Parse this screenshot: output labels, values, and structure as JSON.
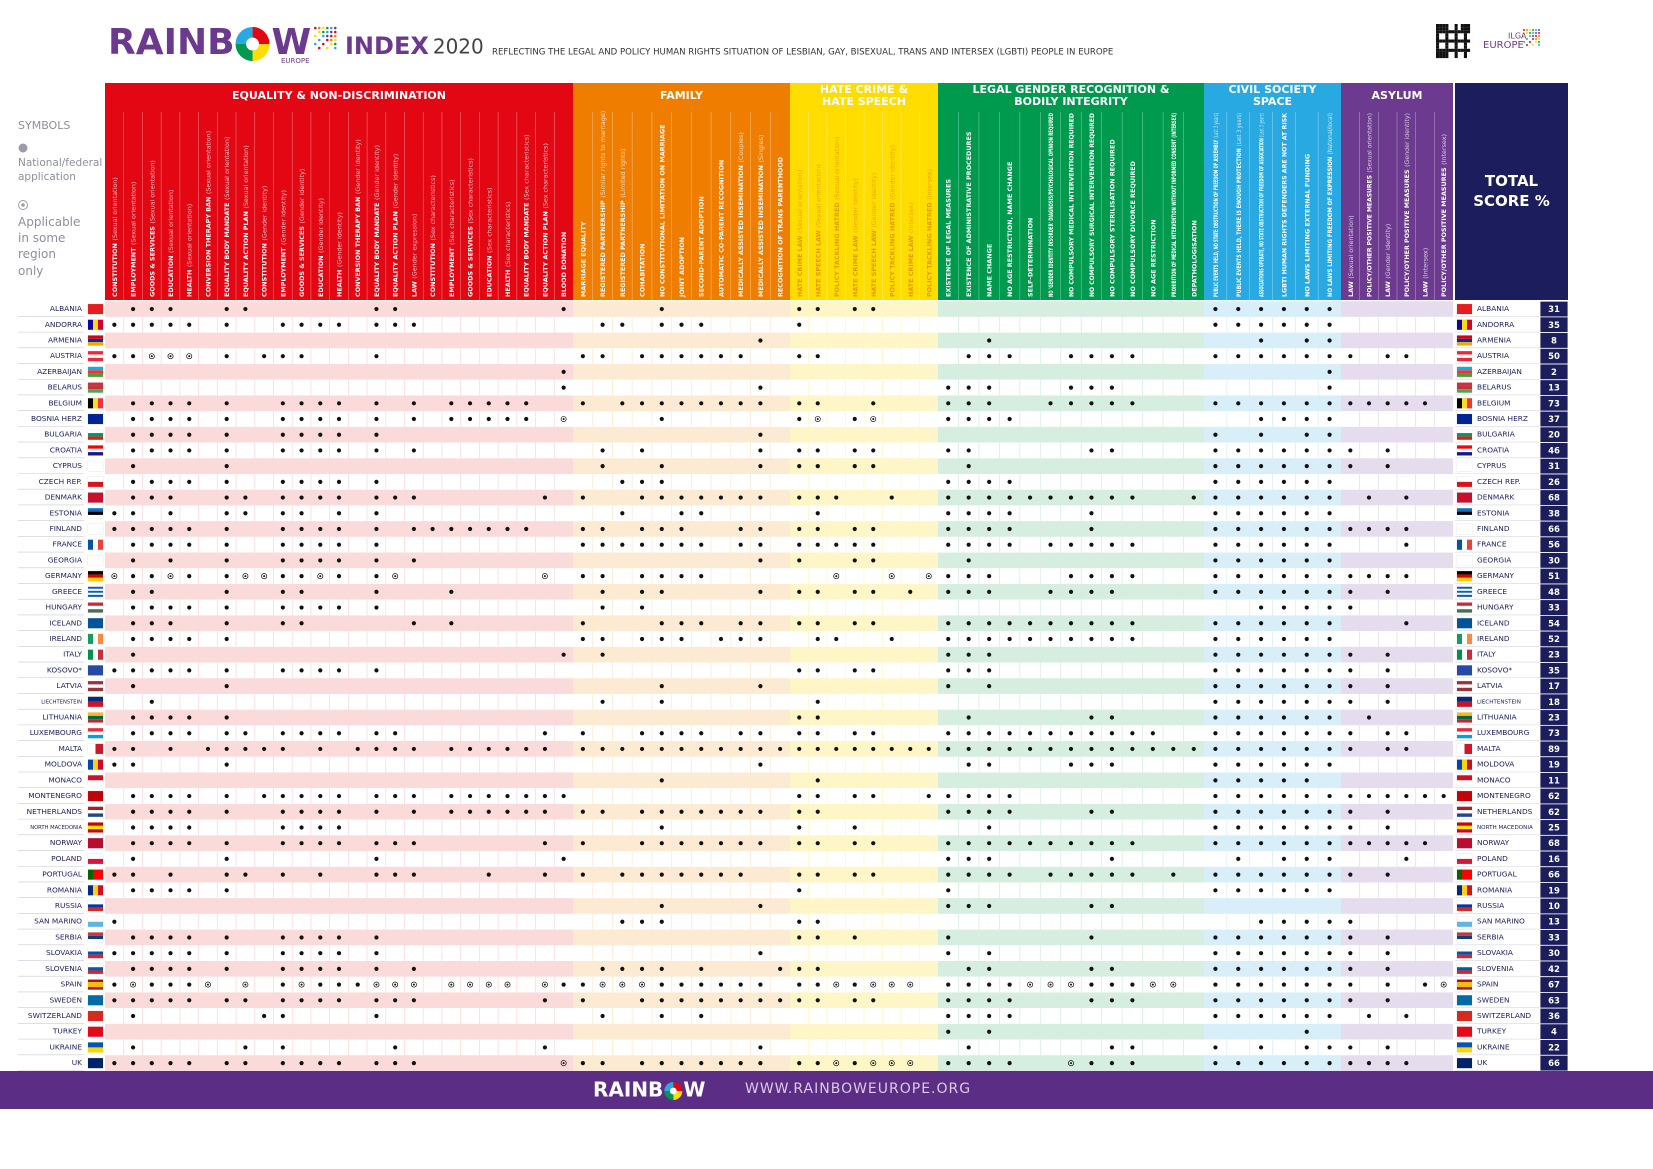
{
  "header": {
    "brand_left": "RAINB",
    "brand_right": "W",
    "brand_sub": "EUROPE",
    "index": "INDEX",
    "year": "2020",
    "subtitle": "REFLECTING THE LEGAL AND POLICY HUMAN RIGHTS SITUATION OF LESBIAN, GAY, BISEXUAL, TRANS AND INTERSEX (LGBTI) PEOPLE IN EUROPE",
    "org": "ILGA",
    "org_sub": "EUROPE"
  },
  "symbols": {
    "title": "SYMBOLS",
    "full": "National/federal application",
    "partial": "Applicable in some region only"
  },
  "total_header": "TOTAL SCORE %",
  "sections": [
    {
      "title": "EQUALITY & NON-DISCRIMINATION",
      "color": "#e30613",
      "tint": "#fbdada",
      "label_color": "#ffffff",
      "columns": [
        {
          "label": "CONSTITUTION",
          "note": "(Sexual orientation)"
        },
        {
          "label": "EMPLOYMENT",
          "note": "(Sexual orientation)"
        },
        {
          "label": "GOODS & SERVICES",
          "note": "(Sexual orientation)"
        },
        {
          "label": "EDUCATION",
          "note": "(Sexual orientation)"
        },
        {
          "label": "HEALTH",
          "note": "(Sexual orientation)"
        },
        {
          "label": "CONVERSION THERAPY BAN",
          "note": "(Sexual orientation)"
        },
        {
          "label": "EQUALITY BODY MANDATE",
          "note": "(Sexual orientation)"
        },
        {
          "label": "EQUALITY ACTION PLAN",
          "note": "(Sexual orientation)"
        },
        {
          "label": "CONSTITUTION",
          "note": "(Gender identity)"
        },
        {
          "label": "EMPLOYMENT",
          "note": "(Gender identity)"
        },
        {
          "label": "GOODS & SERVICES",
          "note": "(Gender identity)"
        },
        {
          "label": "EDUCATION",
          "note": "(Gender identity)"
        },
        {
          "label": "HEALTH",
          "note": "(Gender identity)"
        },
        {
          "label": "CONVERSION THERAPY BAN",
          "note": "(Gender identity)"
        },
        {
          "label": "EQUALITY BODY MANDATE",
          "note": "(Gender identity)"
        },
        {
          "label": "EQUALITY ACTION PLAN",
          "note": "(Gender identity)"
        },
        {
          "label": "LAW",
          "note": "(Gender expression)"
        },
        {
          "label": "CONSTITUTION",
          "note": "(Sex characteristics)"
        },
        {
          "label": "EMPLOYMENT",
          "note": "(Sex characteristics)"
        },
        {
          "label": "GOODS & SERVICES",
          "note": "(Sex characteristics)"
        },
        {
          "label": "EDUCATION",
          "note": "(Sex characteristics)"
        },
        {
          "label": "HEALTH",
          "note": "(Sex characteristics)"
        },
        {
          "label": "EQUALITY BODY MANDATE",
          "note": "(Sex characteristics)"
        },
        {
          "label": "EQUALITY ACTION PLAN",
          "note": "(Sex characteristics)"
        },
        {
          "label": "BLOOD DONATION"
        }
      ]
    },
    {
      "title": "FAMILY",
      "color": "#ef7d00",
      "tint": "#fdead2",
      "label_color": "#ffffff",
      "columns": [
        {
          "label": "MARRIAGE EQUALITY"
        },
        {
          "label": "REGISTERED PARTNERSHIP",
          "note": "(Similar rights to marriage)"
        },
        {
          "label": "REGISTERED PARTNERSHIP",
          "note": "(Limited rights)"
        },
        {
          "label": "COHABITATION"
        },
        {
          "label": "NO CONSTITUTIONAL LIMITATION ON MARRIAGE"
        },
        {
          "label": "JOINT ADOPTION"
        },
        {
          "label": "SECOND-PARENT ADOPTION"
        },
        {
          "label": "AUTOMATIC CO-PARENT RECOGNITION"
        },
        {
          "label": "MEDICALLY ASSISTED INSEMINATION",
          "note": "(Couples)"
        },
        {
          "label": "MEDICALLY ASSISTED INSEMINATION",
          "note": "(Singles)"
        },
        {
          "label": "RECOGNITION OF TRANS PARENTHOOD"
        }
      ]
    },
    {
      "title": "HATE CRIME & HATE SPEECH",
      "color": "#ffdd00",
      "tint": "#fff6c8",
      "label_color": "#e39a00",
      "columns": [
        {
          "label": "HATE CRIME LAW",
          "note": "(Sexual orientation)"
        },
        {
          "label": "HATE SPEECH LAW",
          "note": "(Sexual orientation)"
        },
        {
          "label": "POLICY TACKLING HATRED",
          "note": "(Sexual orientation)"
        },
        {
          "label": "HATE CRIME LAW",
          "note": "(Gender identity)"
        },
        {
          "label": "HATE SPEECH LAW",
          "note": "(Gender identity)"
        },
        {
          "label": "POLICY TACKLING HATRED",
          "note": "(Gender identity)"
        },
        {
          "label": "HATE CRIME LAW",
          "note": "(Intersex)"
        },
        {
          "label": "POLICY TACKLING HATRED",
          "note": "(Intersex)"
        }
      ]
    },
    {
      "title": "LEGAL GENDER RECOGNITION & BODILY INTEGRITY",
      "color": "#009a4e",
      "tint": "#d5eee0",
      "label_color": "#ffffff",
      "columns": [
        {
          "label": "EXISTENCE OF LEGAL MEASURES"
        },
        {
          "label": "EXISTENCE OF ADMINISTRATIVE PROCEDURES"
        },
        {
          "label": "NAME CHANGE"
        },
        {
          "label": "NO AGE RESTRICTION, NAME CHANGE"
        },
        {
          "label": "SELF-DETERMINATION"
        },
        {
          "label": "NO 'GENDER IDENTITY DISORDER' DIAGNOSIS/PSYCHOLOGICAL OPINION REQUIRED"
        },
        {
          "label": "NO COMPULSORY MEDICAL INTERVENTION REQUIRED"
        },
        {
          "label": "NO COMPULSORY SURGICAL INTERVENTION REQUIRED"
        },
        {
          "label": "NO COMPULSORY STERILISATION REQUIRED"
        },
        {
          "label": "NO COMPULSORY DIVORCE REQUIRED"
        },
        {
          "label": "NO AGE RESTRICTION"
        },
        {
          "label": "PROHIBITION OF MEDICAL INTERVENTION WITHOUT INFORMED CONSENT (INTERSEX)"
        },
        {
          "label": "DEPATHOLOGISATION"
        }
      ]
    },
    {
      "title": "CIVIL SOCIETY SPACE",
      "color": "#29a9e1",
      "tint": "#d8eef9",
      "label_color": "#ffffff",
      "columns": [
        {
          "label": "PUBLIC EVENTS HELD, NO STATE OBSTRUCTION OF FREEDOM OF ASSEMBLY",
          "note": "(Last 3 years)"
        },
        {
          "label": "PUBLIC EVENTS HELD, THERE IS ENOUGH PROTECTION",
          "note": "(Last 3 years)"
        },
        {
          "label": "ASSOCIATIONS OPERATE, NO STATE OBSTRUCTION OF FREEDOM OF ASSOCIATION",
          "note": "(Last 3 years)"
        },
        {
          "label": "LGBTI HUMAN RIGHTS DEFENDERS ARE NOT AT RISK"
        },
        {
          "label": "NO LAWS LIMITING EXTERNAL FUNDING"
        },
        {
          "label": "NO LAWS LIMITING FREEDOM OF EXPRESSION",
          "note": "(National/local)"
        }
      ]
    },
    {
      "title": "ASYLUM",
      "color": "#6c3a8e",
      "tint": "#e5dcee",
      "label_color": "#ffffff",
      "columns": [
        {
          "label": "LAW",
          "note": "(Sexual orientation)"
        },
        {
          "label": "POLICY/OTHER POSITIVE MEASURES",
          "note": "(Sexual orientation)"
        },
        {
          "label": "LAW",
          "note": "(Gender identity)"
        },
        {
          "label": "POLICY/OTHER POSITIVE MEASURES",
          "note": "(Gender identity)"
        },
        {
          "label": "LAW",
          "note": "(Intersex)"
        },
        {
          "label": "POLICY/OTHER POSITIVE MEASURES",
          "note": "(Intersex)"
        }
      ]
    }
  ],
  "countries": [
    {
      "name": "ALBANIA",
      "score": 31,
      "cells": [
        ".xxx..xx......xx........x",
        "....x......",
        "xx.xx...",
        ".............",
        "xxxxxx",
        "......"
      ]
    },
    {
      "name": "ANDORRA",
      "score": 35,
      "cells": [
        "xxxxx.x..xxxx.xxx........",
        ".xx.xxx....",
        "x.......",
        ".............",
        "xxxxxx",
        "......"
      ]
    },
    {
      "name": "ARMENIA",
      "score": 8,
      "cells": [
        ".........................",
        ".........x.",
        "........",
        "..x..........",
        "..x.xx",
        "......"
      ]
    },
    {
      "name": "AUSTRIA",
      "score": 50,
      "cells": [
        "xxooo.x.xxx...x..........",
        "xx.xxxxxx..",
        "xx......",
        ".xxx..xxxx...",
        "xxxxxx",
        "x.xx.."
      ]
    },
    {
      "name": "AZERBAIJAN",
      "score": 2,
      "cells": [
        "........................x",
        "...........",
        "........",
        ".............",
        ".....x",
        "......"
      ]
    },
    {
      "name": "BELARUS",
      "score": 13,
      "cells": [
        "........................x",
        ".........x.",
        "........",
        "xxx...xxx....",
        ".....x",
        "......"
      ]
    },
    {
      "name": "BELGIUM",
      "score": 73,
      "cells": [
        ".xxxx.x..xxxx.x.x.xxxxx..",
        "x.xxxxxxxx.",
        "xx..x...",
        "xxx..xxxxx...",
        "xxxxxx",
        "xxxxx."
      ]
    },
    {
      "name": "BOSNIA HERZ",
      "score": 37,
      "cells": [
        ".xxxx.x..xxxx.x.x.xxxxx.o",
        "....x......",
        "xo.xo...",
        "xxxx.........",
        "..xxxx",
        "......"
      ]
    },
    {
      "name": "BULGARIA",
      "score": 20,
      "cells": [
        ".xxxx.x..xxxx.x..........",
        ".........x.",
        "........",
        ".............",
        "x.x.xx",
        "......"
      ]
    },
    {
      "name": "CROATIA",
      "score": 46,
      "cells": [
        ".xxxx.x..xxxx.x.x........",
        ".x.x.....x.",
        "xx.xx...",
        "xx.....xx....",
        "xxxxxx",
        "x.x..."
      ]
    },
    {
      "name": "CYPRUS",
      "score": 31,
      "cells": [
        ".x....x..................",
        ".x..x....x.",
        "xx.xx...",
        ".x...........",
        "xxxxxx",
        "x.x..."
      ]
    },
    {
      "name": "CZECH REP.",
      "score": 26,
      "cells": [
        ".xxxx.x..xxxx.x..........",
        "..xxx......",
        "........",
        "xxxx.........",
        "xxxxxx",
        "......"
      ]
    },
    {
      "name": "DENMARK",
      "score": 68,
      "cells": [
        ".xxx..xx.xxxx.xxx......x.",
        "x..xxxxxxx.",
        "xxx..x..",
        "xxxxxxxxxx..x",
        "xxxxxx",
        ".x.x.."
      ]
    },
    {
      "name": "ESTONIA",
      "score": 38,
      "cells": [
        "xx.x..xx.xx.x.x..........",
        "..x..xx....",
        ".x......",
        "xxxx...x.....",
        "xxxxxx",
        "......"
      ]
    },
    {
      "name": "FINLAND",
      "score": 66,
      "cells": [
        "xxxxx.x..xxxx.x.xxxxxxx..",
        "xx.xxx..xx.",
        "xx.xx...",
        "xxxx...x.....",
        "xxxxxx",
        "xxxx.."
      ]
    },
    {
      "name": "FRANCE",
      "score": 56,
      "cells": [
        ".xxxx.x..xxxx.x..........",
        "xxxxxxx.xx.",
        "xxxxx...",
        "xxxx.xxxxx...",
        "xxxxxx",
        "...x.."
      ]
    },
    {
      "name": "GEORGIA",
      "score": 30,
      "cells": [
        ".x.x..x..xxxx.x.x........",
        ".........x.",
        "x..xx...",
        ".x...........",
        "xxxxxx",
        "......"
      ]
    },
    {
      "name": "GERMANY",
      "score": 51,
      "cells": [
        "oxxox.xooxxox.xo.......o.",
        "xx.xxxx....",
        "..o..o.o",
        "xxx...xxxx...",
        "xxxxxx",
        "xxxx.."
      ]
    },
    {
      "name": "GREECE",
      "score": 48,
      "cells": [
        ".xx...x..xx...x...x......",
        ".x.xx....x.",
        "xx.xx.x.",
        "xxx..xxxx....",
        "xxxxxx",
        "x.x..."
      ]
    },
    {
      "name": "HUNGARY",
      "score": 33,
      "cells": [
        ".xxxx.x..xxxx.x..........",
        ".x.x.......",
        "........",
        ".............",
        "..xxxx",
        "x....."
      ]
    },
    {
      "name": "ICELAND",
      "score": 54,
      "cells": [
        ".xxx..x..xx.....x.x......",
        "x...xxx.xx.",
        "xx.xx...",
        "xxxxxxxxxx...",
        "xxxxxx",
        "...x.."
      ]
    },
    {
      "name": "IRELAND",
      "score": 52,
      "cells": [
        ".xxxx.x..................",
        "xx.xxx.xxx.",
        ".xx..x..",
        "xxxxxxxxxx...",
        "xxxxxx",
        "......"
      ]
    },
    {
      "name": "ITALY",
      "score": 23,
      "cells": [
        ".x......................x",
        ".x.........",
        "........",
        "xxx..........",
        "xxxxxx",
        "x.x..."
      ]
    },
    {
      "name": "KOSOVO*",
      "score": 35,
      "cells": [
        "xxxxx.x..xxxx.x..........",
        "...........",
        "xx.xx...",
        "xxx..........",
        "xxxxxx",
        "x.x..."
      ]
    },
    {
      "name": "LATVIA",
      "score": 17,
      "cells": [
        ".x....x..................",
        "....x....x.",
        "........",
        "x.x..........",
        "xxxxxx",
        "x.x..."
      ]
    },
    {
      "name": "LIECHTENSTEIN",
      "score": 18,
      "cells": [
        "..x......................",
        ".x..x......",
        ".x......",
        ".............",
        "xxxxxx",
        "x.x..."
      ]
    },
    {
      "name": "LITHUANIA",
      "score": 23,
      "cells": [
        ".xxxx.x..................",
        "...........",
        "xx......",
        ".x.....xx....",
        "xxxxxx",
        ".x...."
      ]
    },
    {
      "name": "LUXEMBOURG",
      "score": 73,
      "cells": [
        ".xxxx.xx.xxxx.xx.......x.",
        "x..xxxx.xx.",
        "xx.xx...",
        "xxxxxxxxxxx..",
        "xxxxxx",
        "x.xx.."
      ]
    },
    {
      "name": "MALTA",
      "score": 89,
      "cells": [
        "xx.x.xxxxx.x.xxxx.xxxxxx.",
        "xxxxxxxxxxx",
        "xxxxxxxx",
        "xxxxxxxxxxxxx",
        "xxxxxx",
        "x.xx.."
      ]
    },
    {
      "name": "MOLDOVA",
      "score": 19,
      "cells": [
        "xx....x..................",
        ".........x.",
        "........",
        ".xx...xxx....",
        "xxxxxx",
        "......"
      ]
    },
    {
      "name": "MONACO",
      "score": 11,
      "cells": [
        ".........................",
        "....x......",
        ".x......",
        ".............",
        "xxxxx.",
        "......"
      ]
    },
    {
      "name": "MONTENEGRO",
      "score": 62,
      "cells": [
        ".xxxx.x.xxxxx.xxx.xxxxxxx",
        "...........",
        "xx.xx..x",
        "xxxx.........",
        "xxxxxx",
        "xxxxxx"
      ]
    },
    {
      "name": "NETHERLANDS",
      "score": 62,
      "cells": [
        ".xxxx.x..xxxx.x.x.xxxxxx.",
        "xx.xxxxxxx.",
        "xx......",
        "xxxx...xx....",
        "xxxxxx",
        "x.x..."
      ]
    },
    {
      "name": "NORTH MACEDONIA",
      "score": 25,
      "cells": [
        ".xxxx....xxxx............",
        "....x......",
        "x..x....",
        "..x..........",
        "xxxxxx",
        "x.x..."
      ]
    },
    {
      "name": "NORWAY",
      "score": 68,
      "cells": [
        ".xxxx.x..xxxx.xxx......x.",
        "x..xxxxxxx.",
        "xx.xx...",
        "xxxxxxxxxx...",
        "xxxxxx",
        "xxxxx."
      ]
    },
    {
      "name": "POLAND",
      "score": 16,
      "cells": [
        ".x....x.......x.........x",
        "...........",
        "........",
        "xxx.....x....",
        ".x.xxx",
        "...x.."
      ]
    },
    {
      "name": "PORTUGAL",
      "score": 66,
      "cells": [
        "xx.x..xx.x.x..xxx...x..x.",
        "x.xxxxxxx..",
        "xx.xx...",
        "xxxx.xxxxx.x.",
        "xxxxxx",
        "x.x..."
      ]
    },
    {
      "name": "ROMANIA",
      "score": 19,
      "cells": [
        ".xxxx.x..................",
        "...........",
        "x.......",
        "x............",
        "xxxxxx",
        "......"
      ]
    },
    {
      "name": "RUSSIA",
      "score": 10,
      "cells": [
        ".........................",
        "....x....x.",
        "........",
        "xxx....xx....",
        "......",
        "......"
      ]
    },
    {
      "name": "SAN MARINO",
      "score": 13,
      "cells": [
        "x........................",
        "..xxx......",
        "xx......",
        ".............",
        "..xxxx",
        "x....."
      ]
    },
    {
      "name": "SERBIA",
      "score": 33,
      "cells": [
        ".xxxx.x..xxxx.x..........",
        "...........",
        "xx.x....",
        "x......x.....",
        "xxxxxx",
        "x.x..."
      ]
    },
    {
      "name": "SLOVAKIA",
      "score": 30,
      "cells": [
        "xxxxx.x..xxxx.x..........",
        ".........x.",
        "........",
        "x.x..........",
        "xxxxxx",
        "x.x..."
      ]
    },
    {
      "name": "SLOVENIA",
      "score": 42,
      "cells": [
        ".xxxx.x..xxxx.x.x........",
        ".xxxx.x...x",
        "xx......",
        ".xx....xx....",
        "xxxxxx",
        "x.x..."
      ]
    },
    {
      "name": "SPAIN",
      "score": 67,
      "cells": [
        "xoxxxo.o.xoxxxooo.oooo.ox",
        "xoooxxxxxx.",
        "xxoxooo.",
        "xxxxoooxxxoo.",
        "xxxxxx",
        "x.x.xo"
      ]
    },
    {
      "name": "SWEDEN",
      "score": 63,
      "cells": [
        "xxxxx.xx.xxxx.xxx......x.",
        "x..xxxxxxxx",
        "xx.xx...",
        "xxxx...xxx...",
        "xxxxxx",
        "x.x..."
      ]
    },
    {
      "name": "SWITZERLAND",
      "score": 36,
      "cells": [
        ".x......xx....x..........",
        ".x..x.x....",
        "........",
        "xxxx.........",
        "xxxxxx",
        ".x.x.."
      ]
    },
    {
      "name": "TURKEY",
      "score": 4,
      "cells": [
        ".........................",
        "...........",
        "........",
        "x.x..........",
        "....x.",
        "......"
      ]
    },
    {
      "name": "UKRAINE",
      "score": 22,
      "cells": [
        ".x.....x.x.....x.......x.",
        ".........x.",
        "........",
        ".x......xx...",
        "x.x.xx",
        "x.x..."
      ]
    },
    {
      "name": "UK",
      "score": 66,
      "cells": [
        "xxxxx.xx.xxxx.xxx.......o",
        "xx.xxxxxxx.",
        "xxoxooo.",
        "xxxx..oxxx...",
        "xxxxxx",
        "xxxx.."
      ]
    }
  ],
  "footer": {
    "brand_left": "RAINB",
    "brand_right": "W",
    "url": "WWW.RAINBOWEUROPE.ORG"
  }
}
